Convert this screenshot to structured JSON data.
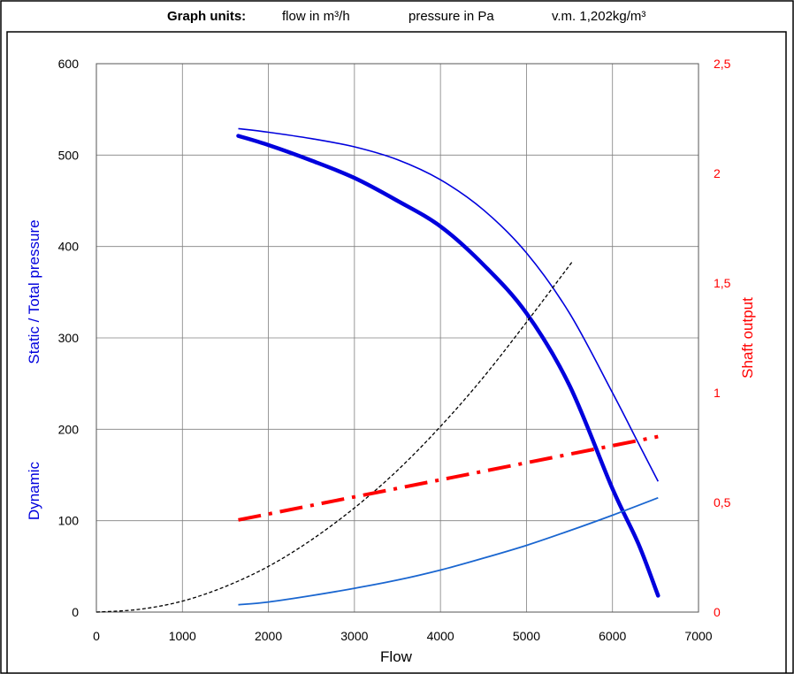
{
  "header": {
    "units_label": "Graph units:",
    "flow_unit": "flow in m³/h",
    "pressure_unit": "pressure in Pa",
    "density": "v.m. 1,202kg/m³"
  },
  "colors": {
    "static_pressure": "#0000dd",
    "total_pressure": "#0000dd",
    "dynamic_pressure": "#1a66d0",
    "shaft_output": "#ff0000",
    "system_curve": "#000000",
    "grid": "#808080"
  },
  "chart_data": {
    "type": "line",
    "xlabel": "Flow",
    "ylabel": "Static / Total pressure",
    "ylabel_secondary": "Dynamic",
    "y2label": "Shaft output",
    "xlim": [
      0,
      7000
    ],
    "ylim": [
      0,
      600
    ],
    "y2lim": [
      0,
      2.5
    ],
    "x_ticks": [
      "0",
      "1000",
      "2000",
      "3000",
      "4000",
      "5000",
      "6000",
      "7000"
    ],
    "y_ticks": [
      "0",
      "100",
      "200",
      "300",
      "400",
      "500",
      "600"
    ],
    "y2_ticks": [
      "0",
      "0,5",
      "1",
      "1,5",
      "2",
      "2,5"
    ],
    "grid": true,
    "series": [
      {
        "axis": "left",
        "style": "thick",
        "x": [
          1650,
          2000,
          2500,
          3000,
          3500,
          4000,
          4500,
          5000,
          5500,
          6000,
          6300,
          6530
        ],
        "y": [
          521,
          511,
          494,
          475,
          450,
          422,
          380,
          327,
          248,
          135,
          75,
          18
        ]
      },
      {
        "axis": "left",
        "style": "thin",
        "x": [
          1650,
          2000,
          2500,
          3000,
          3500,
          4000,
          4500,
          5000,
          5500,
          6000,
          6300,
          6530
        ],
        "y": [
          529,
          525,
          518,
          509,
          495,
          473,
          440,
          393,
          327,
          240,
          185,
          143
        ]
      },
      {
        "axis": "left",
        "style": "dynamic",
        "x": [
          1650,
          2000,
          2500,
          3000,
          3500,
          4000,
          4500,
          5000,
          5500,
          6000,
          6530
        ],
        "y": [
          8,
          11,
          18,
          26,
          35,
          46,
          59,
          73,
          89,
          106,
          125
        ]
      },
      {
        "axis": "left",
        "style": "system",
        "x": [
          0,
          500,
          1000,
          1500,
          2000,
          2500,
          3000,
          3500,
          4000,
          4500,
          5000,
          5530
        ],
        "y": [
          0,
          3,
          12,
          28,
          50,
          79,
          114,
          155,
          203,
          257,
          317,
          383
        ]
      },
      {
        "axis": "right",
        "style": "shaft",
        "x": [
          1650,
          6530
        ],
        "y": [
          0.42,
          0.8
        ]
      }
    ]
  }
}
